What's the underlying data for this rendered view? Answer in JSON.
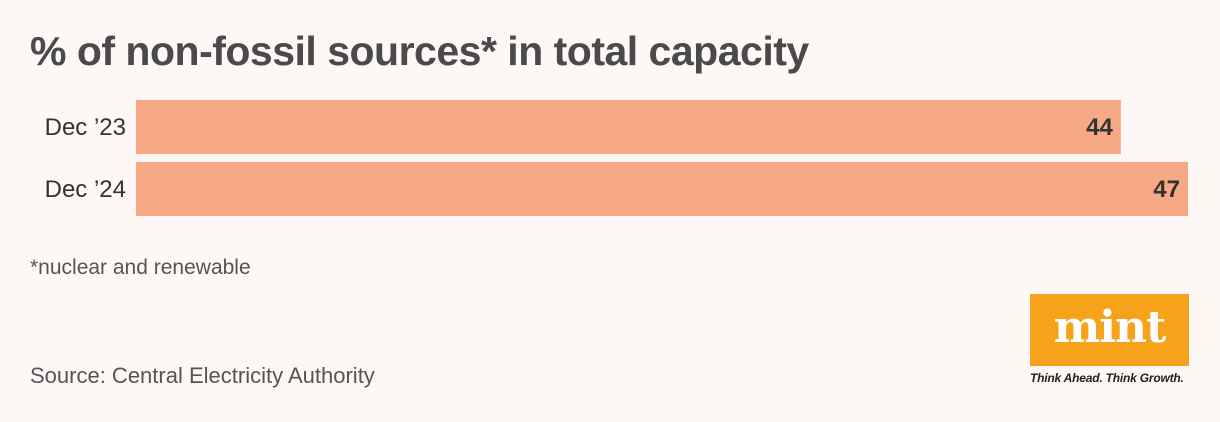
{
  "chart_data": {
    "type": "bar",
    "orientation": "horizontal",
    "title": "% of non-fossil sources* in total capacity",
    "categories": [
      "Dec ’23",
      "Dec ’24"
    ],
    "values": [
      44,
      47
    ],
    "data_labels": [
      "44",
      "47"
    ],
    "xlim": [
      0,
      47
    ],
    "xlabel": "",
    "ylabel": "",
    "grid": false,
    "legend": "none",
    "bar_color": "#f7a986"
  },
  "footnote": "*nuclear and renewable",
  "source": "Source: Central Electricity Authority",
  "logo": {
    "word": "mint",
    "tagline": "Think Ahead. Think Growth.",
    "color": "#f7a21b"
  }
}
